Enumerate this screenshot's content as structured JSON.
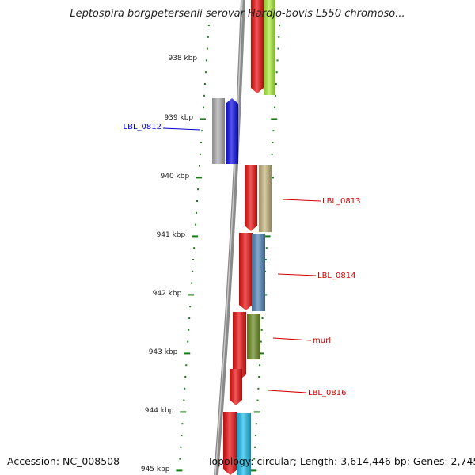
{
  "title": "Leptospira borgpetersenii serovar Hardjo-bovis L550 chromoso...",
  "accession_text": "Accession: NC_008508",
  "topology_text": "Topology: circular; Length: 3,614,446 bp; Genes: 2,745",
  "colors": {
    "backbone": "#8a8a8a",
    "tick": "#1a7a1a",
    "scale_label": "#222222",
    "label_red": "#d40000",
    "label_blue": "#0000c8"
  },
  "scale_ticks": [
    "938 kbp",
    "939 kbp",
    "940 kbp",
    "941 kbp",
    "942 kbp",
    "943 kbp",
    "944 kbp",
    "945 kbp"
  ],
  "gene_labels": [
    {
      "text": "LBL_0812",
      "color": "#0000c8"
    },
    {
      "text": "LBL_0813",
      "color": "#d40000"
    },
    {
      "text": "LBL_0814",
      "color": "#d40000"
    },
    {
      "text": "murI",
      "color": "#d40000"
    },
    {
      "text": "LBL_0816",
      "color": "#d40000"
    }
  ],
  "features": [
    {
      "kind": "cds",
      "color": "#ee1010",
      "strand": "forward"
    },
    {
      "kind": "gene",
      "color": "#aef03c",
      "strand": "forward"
    },
    {
      "kind": "gene",
      "color": "#b0b0b0",
      "strand": "reverse"
    },
    {
      "kind": "cds",
      "color": "#0a0ae6",
      "strand": "reverse"
    },
    {
      "kind": "cds",
      "color": "#ee1010",
      "strand": "forward"
    },
    {
      "kind": "gene",
      "color": "#c8b880",
      "strand": "forward"
    },
    {
      "kind": "cds",
      "color": "#ee1010",
      "strand": "forward"
    },
    {
      "kind": "gene",
      "color": "#5588bb",
      "strand": "forward"
    },
    {
      "kind": "cds",
      "color": "#ee1010",
      "strand": "forward"
    },
    {
      "kind": "gene",
      "color": "#6b8e23",
      "strand": "forward"
    },
    {
      "kind": "cds",
      "color": "#ee1010",
      "strand": "forward"
    },
    {
      "kind": "cds",
      "color": "#ee1010",
      "strand": "forward"
    },
    {
      "kind": "gene",
      "color": "#20c0f0",
      "strand": "forward"
    }
  ]
}
